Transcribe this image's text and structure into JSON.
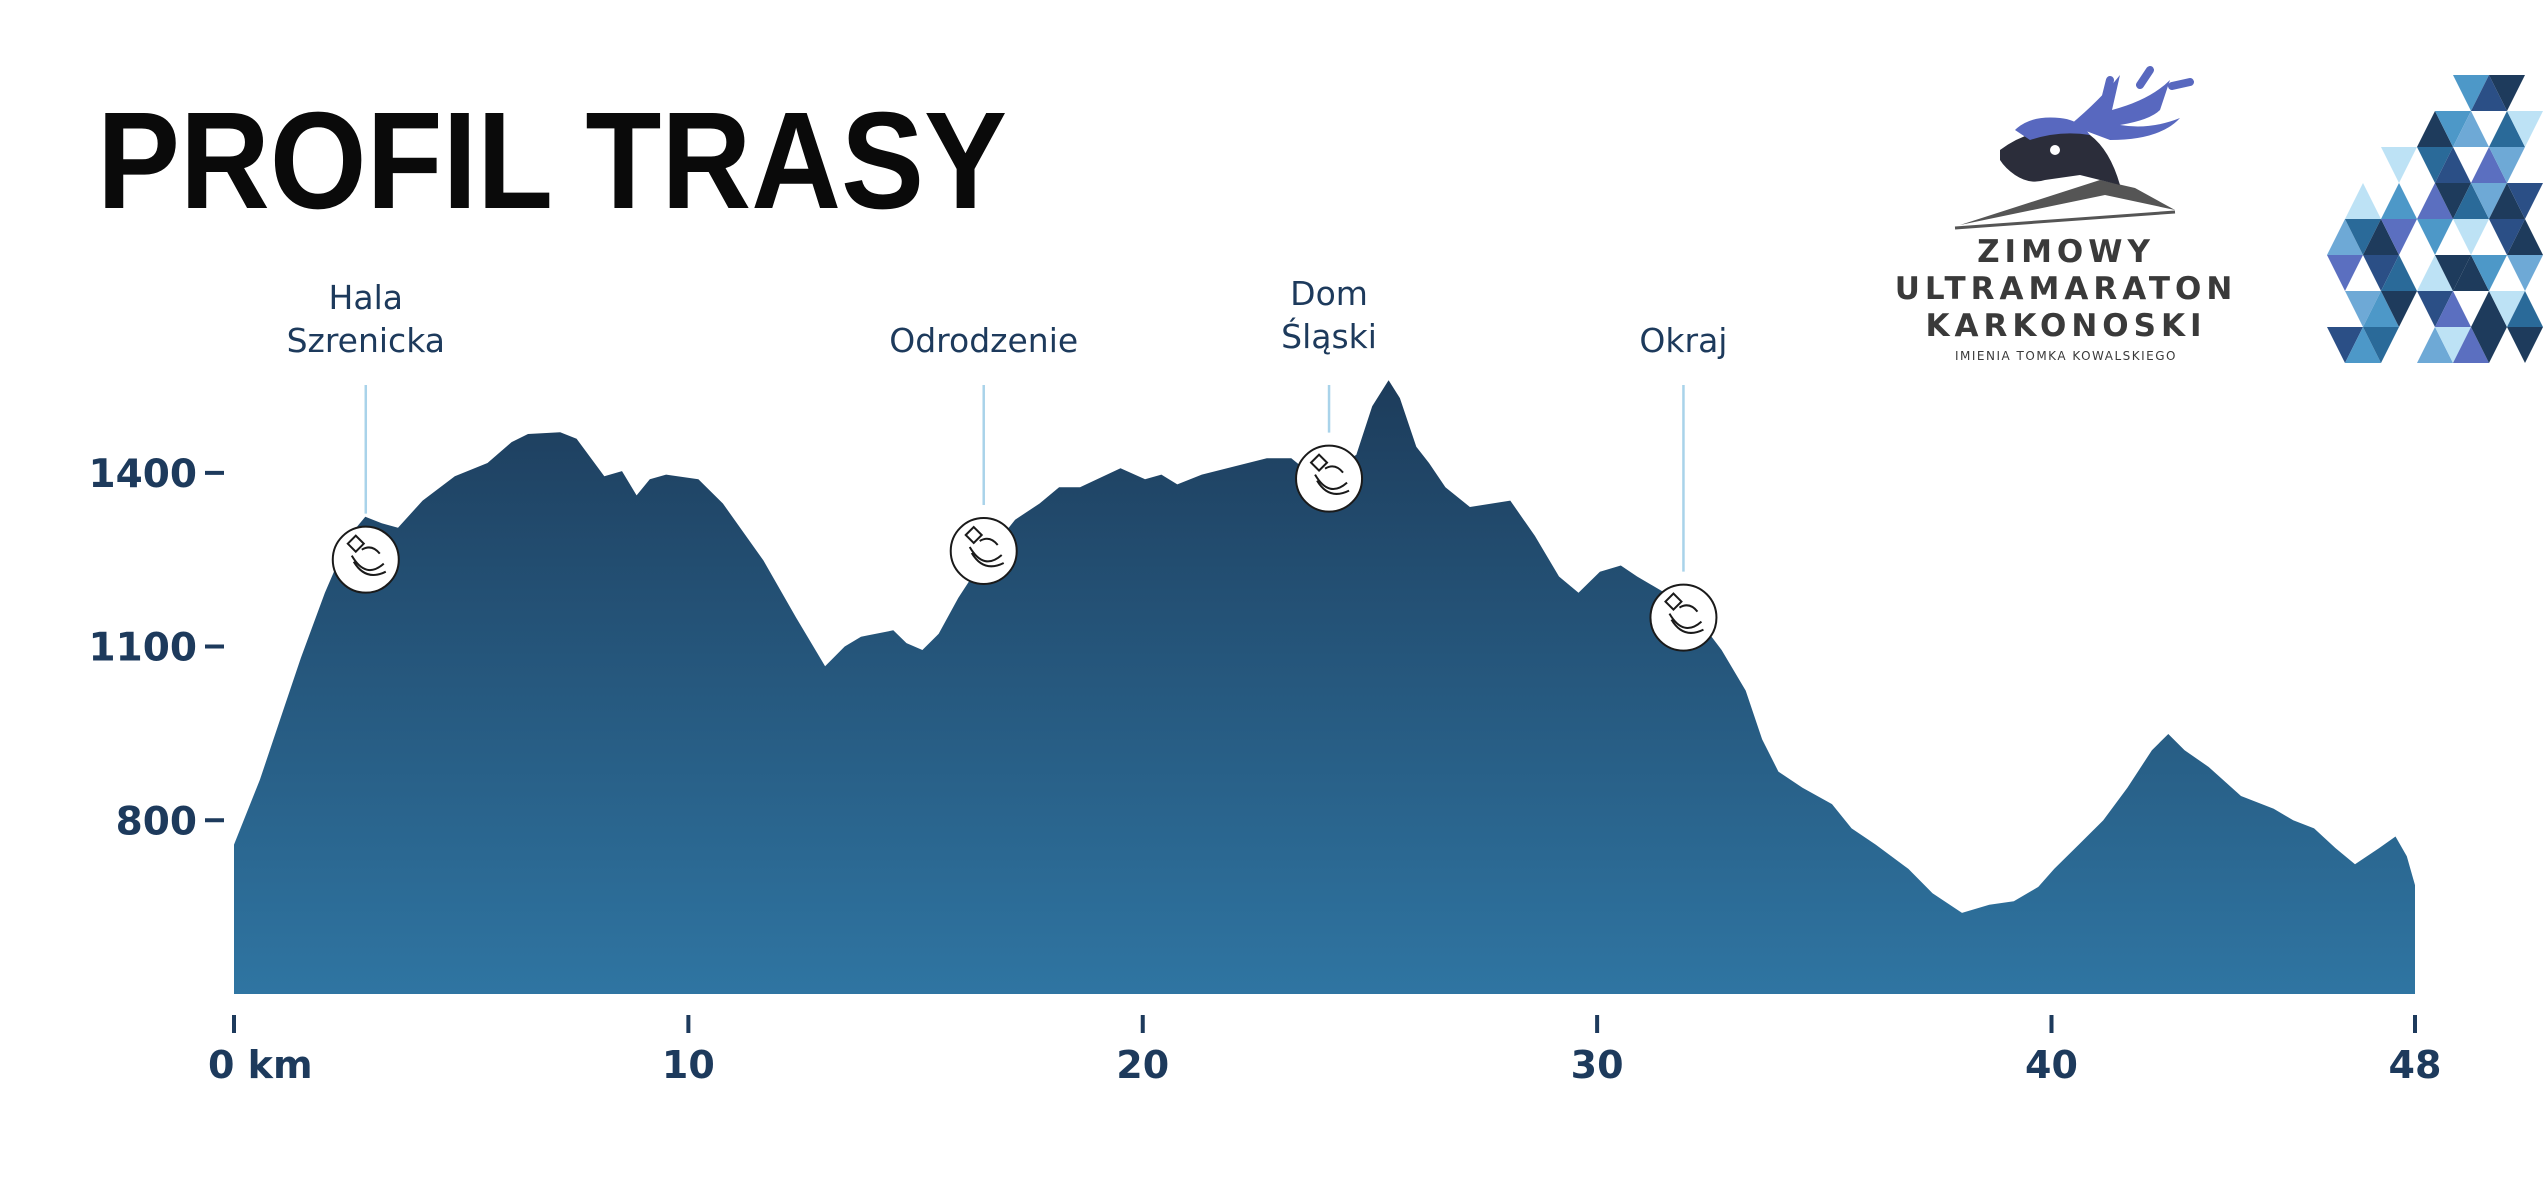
{
  "chart_data": {
    "type": "area",
    "title": "PROFIL TRASY",
    "x": [
      0,
      0.57,
      1.11,
      1.47,
      2.0,
      2.54,
      2.89,
      3.25,
      3.61,
      4.15,
      4.86,
      5.58,
      6.11,
      6.47,
      7.18,
      7.54,
      8.15,
      8.54,
      8.86,
      9.15,
      9.51,
      10.22,
      10.76,
      11.65,
      12.37,
      13.01,
      13.44,
      13.8,
      14.51,
      14.8,
      15.15,
      15.51,
      15.94,
      16.48,
      17.19,
      17.73,
      18.16,
      18.62,
      19.51,
      20.05,
      20.41,
      20.76,
      21.3,
      22.02,
      22.73,
      23.27,
      23.62,
      24.16,
      24.7,
      25.05,
      25.41,
      25.66,
      26.02,
      26.3,
      26.66,
      27.2,
      28.09,
      28.63,
      29.16,
      29.59,
      30.06,
      30.52,
      30.88,
      31.49,
      32.2,
      32.74,
      33.27,
      33.63,
      33.99,
      34.52,
      35.17,
      35.6,
      36.13,
      36.85,
      37.38,
      38.03,
      38.63,
      39.17,
      39.71,
      40.06,
      40.6,
      41.14,
      41.67,
      42.21,
      42.57,
      42.93,
      43.46,
      44.17,
      44.89,
      45.32,
      45.78,
      46.25,
      46.68,
      47.21,
      47.57,
      47.82,
      48.0
    ],
    "values": [
      758,
      870,
      996,
      1080,
      1193,
      1291,
      1324,
      1313,
      1305,
      1352,
      1394,
      1417,
      1453,
      1467,
      1470,
      1459,
      1394,
      1403,
      1361,
      1389,
      1397,
      1389,
      1347,
      1249,
      1150,
      1066,
      1100,
      1117,
      1128,
      1106,
      1094,
      1122,
      1184,
      1249,
      1319,
      1347,
      1375,
      1375,
      1408,
      1389,
      1397,
      1380,
      1397,
      1411,
      1425,
      1425,
      1403,
      1408,
      1431,
      1515,
      1560,
      1529,
      1445,
      1417,
      1375,
      1341,
      1352,
      1291,
      1221,
      1193,
      1229,
      1240,
      1221,
      1193,
      1150,
      1094,
      1024,
      940,
      884,
      856,
      828,
      786,
      758,
      716,
      674,
      640,
      654,
      660,
      685,
      716,
      758,
      800,
      856,
      921,
      949,
      921,
      892,
      842,
      820,
      800,
      786,
      752,
      724,
      752,
      772,
      738,
      688
    ],
    "color": [
      "#1d3c5b",
      "#2f75a2"
    ],
    "xlim": [
      0,
      48
    ],
    "xticks": [
      {
        "value": 0,
        "label": "0 km"
      },
      10,
      20,
      30,
      40,
      48
    ],
    "ylim": [
      500,
      1600
    ],
    "yticks": [
      800,
      1100,
      1400
    ],
    "waypoints": [
      {
        "label": [
          "Hala",
          "Szrenicka"
        ],
        "km": 2.9,
        "elevation": 1250
      },
      {
        "label": [
          "Odrodzenie"
        ],
        "km": 16.5,
        "elevation": 1265
      },
      {
        "label": [
          "Dom",
          "Śląski"
        ],
        "km": 24.1,
        "elevation": 1390
      },
      {
        "label": [
          "Okraj"
        ],
        "km": 31.9,
        "elevation": 1150
      }
    ]
  },
  "logo": {
    "lines": [
      "ZIMOWY",
      "ULTRAMARATON",
      "KARKONOSKI"
    ],
    "subtitle": "IMIENIA TOMKA KOWALSKIEGO"
  }
}
